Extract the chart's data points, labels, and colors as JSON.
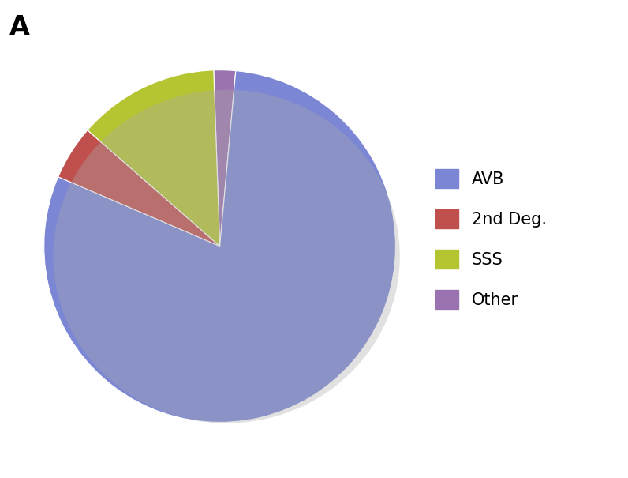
{
  "labels": [
    "Other",
    "AVB",
    "2nd Deg.",
    "SSS"
  ],
  "values": [
    2,
    80,
    5,
    13
  ],
  "colors": [
    "#9B72B0",
    "#7B86D4",
    "#C0504D",
    "#B5C531"
  ],
  "legend_labels": [
    "AVB",
    "2nd Deg.",
    "SSS",
    "Other"
  ],
  "legend_colors": [
    "#7B86D4",
    "#C0504D",
    "#B5C531",
    "#9B72B0"
  ],
  "panel_label": "A",
  "background_color": "#FFFFFF",
  "startangle": 92,
  "legend_fontsize": 15,
  "legend_labelspacing": 1.3
}
